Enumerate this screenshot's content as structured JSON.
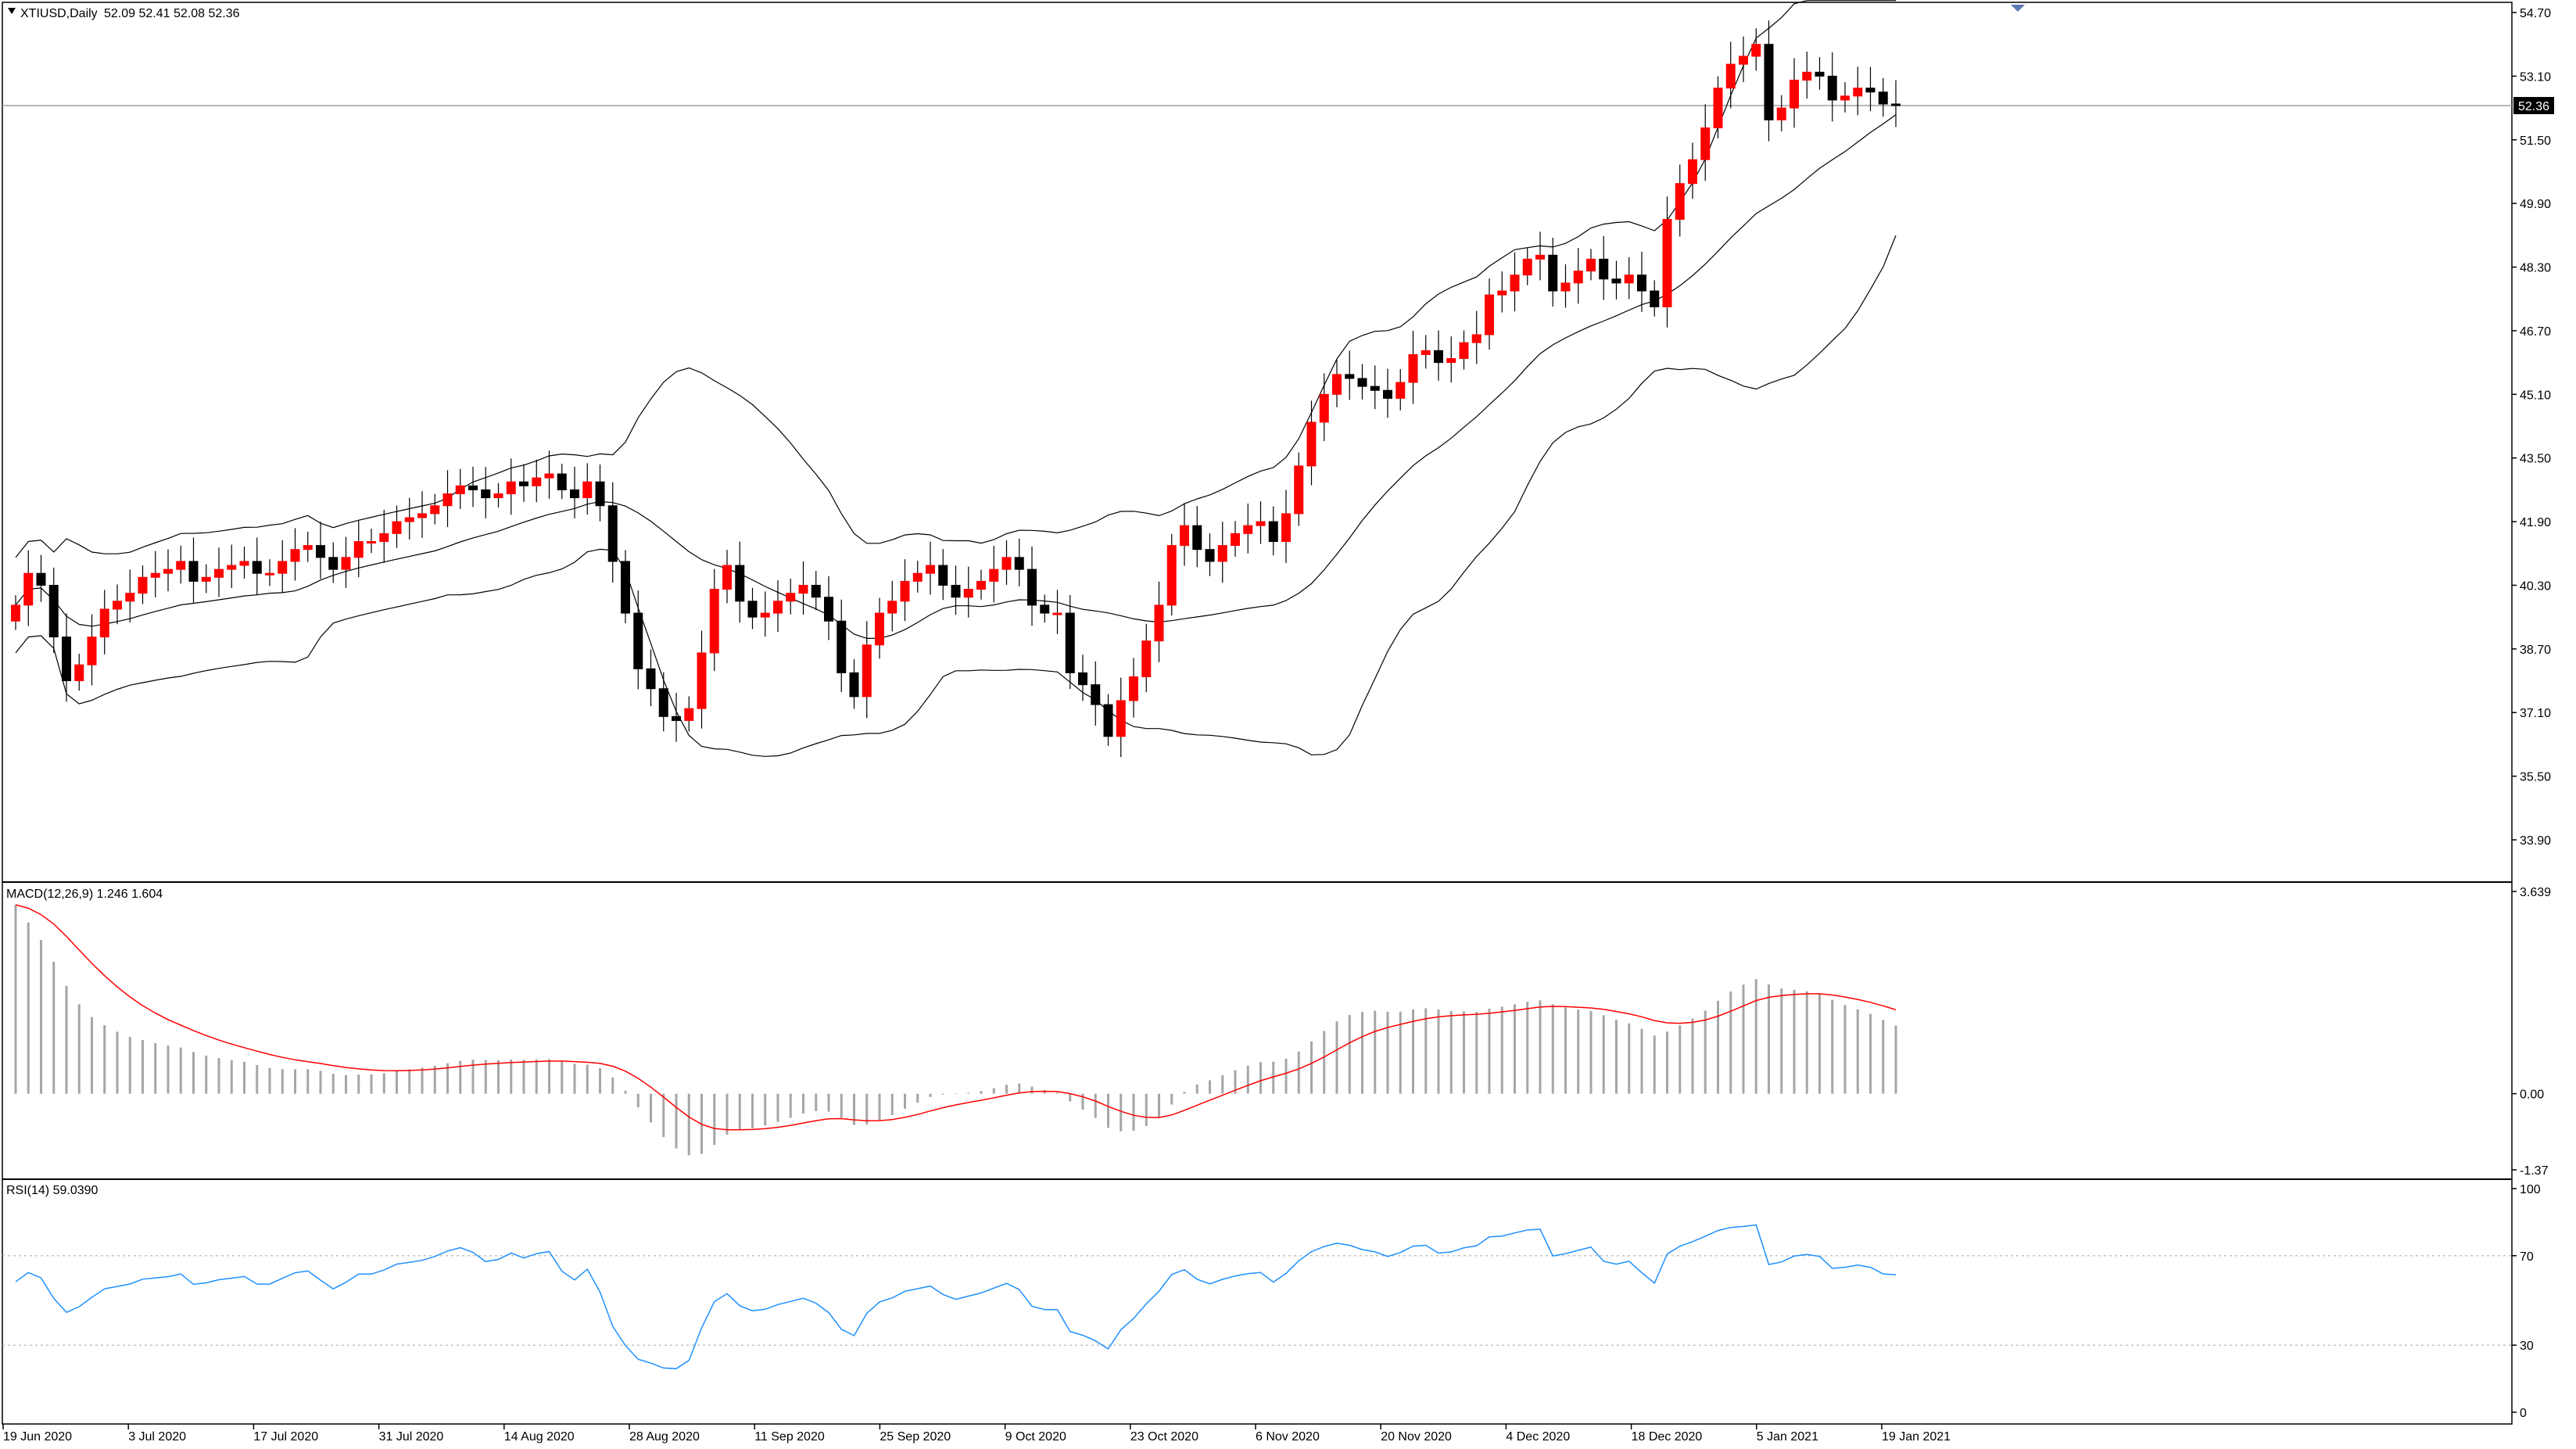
{
  "window": {
    "symbol_header": "XTIUSD,Daily",
    "ohlc_header": "52.09 52.41 52.08 52.36"
  },
  "price_panel": {
    "current_price_label": "52.36",
    "y_ticks": [
      "54.70",
      "53.10",
      "51.50",
      "49.90",
      "48.30",
      "46.70",
      "45.10",
      "43.50",
      "41.90",
      "40.30",
      "38.70",
      "37.10",
      "35.50",
      "33.90"
    ],
    "ylim": [
      33.9,
      54.7
    ]
  },
  "macd_panel": {
    "header": "MACD(12,26,9) 1.246 1.604",
    "y_ticks": [
      "3.639",
      "0.00",
      "-1.37"
    ],
    "ylim": [
      -1.37,
      3.639
    ]
  },
  "rsi_panel": {
    "header": "RSI(14) 59.0390",
    "y_ticks": [
      "100",
      "70",
      "30",
      "0"
    ],
    "levels": [
      70,
      30
    ]
  },
  "x_axis": {
    "date_labels": [
      "19 Jun 2020",
      "3 Jul 2020",
      "17 Jul 2020",
      "31 Jul 2020",
      "14 Aug 2020",
      "28 Aug 2020",
      "11 Sep 2020",
      "25 Sep 2020",
      "9 Oct 2020",
      "23 Oct 2020",
      "6 Nov 2020",
      "20 Nov 2020",
      "4 Dec 2020",
      "18 Dec 2020",
      "5 Jan 2021",
      "19 Jan 2021"
    ]
  },
  "colors": {
    "bull": "#ff0000",
    "bear": "#000000",
    "signal": "#ff0000",
    "histogram": "#a6a6a6",
    "rsi": "#1e90ff",
    "bands": "#000000"
  },
  "chart_data": {
    "type": "candlestick",
    "indicators": [
      "Bollinger Bands",
      "MACD(12,26,9)",
      "RSI(14)"
    ],
    "close": [
      39.8,
      40.6,
      40.3,
      39.0,
      37.9,
      38.3,
      39.0,
      39.7,
      39.9,
      40.1,
      40.5,
      40.6,
      40.7,
      40.9,
      40.4,
      40.5,
      40.7,
      40.8,
      40.9,
      40.6,
      40.6,
      40.9,
      41.2,
      41.3,
      41.0,
      40.7,
      41.0,
      41.4,
      41.4,
      41.6,
      41.9,
      42.0,
      42.1,
      42.3,
      42.6,
      42.8,
      42.7,
      42.5,
      42.6,
      42.9,
      42.8,
      43.0,
      43.1,
      42.7,
      42.5,
      42.9,
      42.3,
      40.9,
      39.6,
      38.2,
      37.7,
      37.0,
      36.9,
      37.2,
      38.6,
      40.2,
      40.8,
      39.9,
      39.5,
      39.6,
      39.9,
      40.1,
      40.3,
      40.0,
      39.4,
      38.1,
      37.5,
      38.8,
      39.6,
      39.9,
      40.4,
      40.6,
      40.8,
      40.3,
      40.0,
      40.2,
      40.4,
      40.7,
      41.0,
      40.7,
      39.8,
      39.6,
      39.6,
      38.1,
      37.8,
      37.3,
      36.5,
      37.4,
      38.0,
      38.9,
      39.8,
      41.3,
      41.8,
      41.2,
      40.9,
      41.3,
      41.6,
      41.8,
      41.9,
      41.4,
      42.1,
      43.3,
      44.4,
      45.1,
      45.6,
      45.5,
      45.3,
      45.2,
      45.0,
      45.4,
      46.1,
      46.2,
      45.9,
      46.0,
      46.4,
      46.6,
      47.6,
      47.7,
      48.1,
      48.5,
      48.6,
      47.7,
      47.9,
      48.2,
      48.5,
      48.0,
      47.9,
      48.1,
      47.7,
      47.3,
      49.5,
      50.4,
      51.0,
      51.8,
      52.8,
      53.4,
      53.6,
      53.9,
      52.0,
      52.3,
      53.0,
      53.2,
      53.1,
      52.5,
      52.6,
      52.8,
      52.7,
      52.4,
      52.36
    ],
    "macd": {
      "value": 1.246,
      "signal": 1.604
    },
    "rsi": 59.039
  }
}
